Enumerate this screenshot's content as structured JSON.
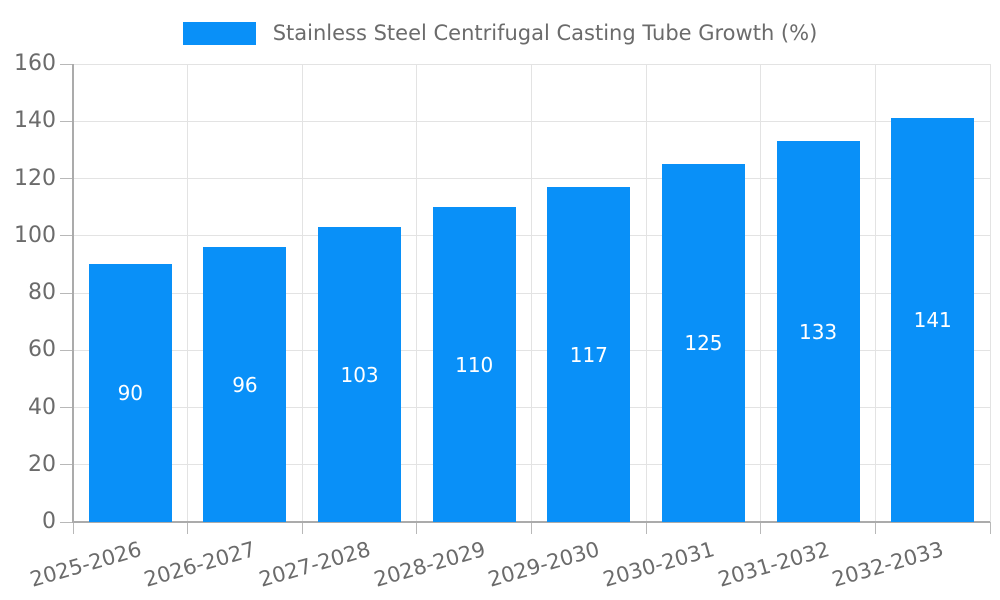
{
  "chart_data": {
    "type": "bar",
    "title": "Stainless Steel Centrifugal Casting Tube Growth (%)",
    "categories": [
      "2025-2026",
      "2026-2027",
      "2027-2028",
      "2028-2029",
      "2029-2030",
      "2030-2031",
      "2031-2032",
      "2032-2033"
    ],
    "values": [
      90,
      96,
      103,
      110,
      117,
      125,
      133,
      141
    ],
    "xlabel": "",
    "ylabel": "",
    "ylim": [
      0,
      160
    ],
    "yticks": [
      0,
      20,
      40,
      60,
      80,
      100,
      120,
      140,
      160
    ],
    "grid": true,
    "legend_position": "top",
    "value_label_position": "inside-center",
    "x_label_rotation_deg": -16
  },
  "colors": {
    "bar": "#0990f8",
    "grid": "#e3e3e3",
    "axis_line": "#ababab",
    "tick": "#b8b8b8",
    "axis_text": "#6b6b6b",
    "value_label_text": "#ffffff",
    "background": "#ffffff"
  }
}
